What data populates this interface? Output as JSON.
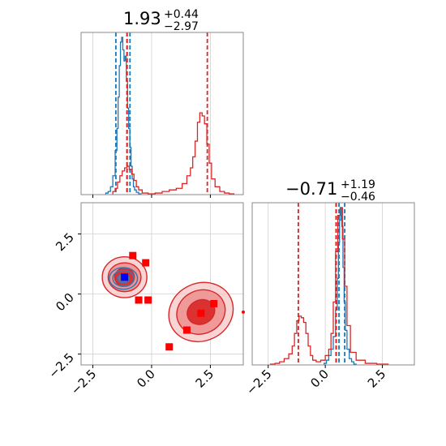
{
  "chart_data": [
    {
      "type": "histogram",
      "panel": "marginal-x",
      "title": {
        "value": "1.93",
        "plus": "+0.44",
        "minus": "−2.97"
      },
      "xlim": [
        -3,
        3.9
      ],
      "grid": true,
      "series": [
        {
          "color": "#1f77b4",
          "bin_centers": [
            -1.9,
            -1.8,
            -1.7,
            -1.6,
            -1.5,
            -1.45,
            -1.4,
            -1.35,
            -1.3,
            -1.25,
            -1.2,
            -1.15,
            -1.1,
            -1.05,
            -1.0,
            -0.95,
            -0.9,
            -0.85,
            -0.8,
            -0.75,
            -0.7,
            -0.6,
            -0.5
          ],
          "heights": [
            0.01,
            0.02,
            0.05,
            0.12,
            0.28,
            0.42,
            0.62,
            0.82,
            0.97,
            1.0,
            0.92,
            0.85,
            0.88,
            0.72,
            0.55,
            0.42,
            0.3,
            0.18,
            0.1,
            0.05,
            0.03,
            0.015,
            0.005
          ],
          "quantile_lines": [
            -1.52,
            -1.05,
            -0.92
          ]
        },
        {
          "color": "#d62728",
          "bin_centers": [
            -1.6,
            -1.5,
            -1.4,
            -1.3,
            -1.2,
            -1.1,
            -1.0,
            -0.9,
            -0.8,
            -0.7,
            -0.6,
            -0.5,
            -0.3,
            0,
            0.3,
            0.6,
            0.9,
            1.2,
            1.4,
            1.6,
            1.7,
            1.8,
            1.9,
            2.0,
            2.1,
            2.2,
            2.3,
            2.4,
            2.5,
            2.6,
            2.8,
            3.0,
            3.2,
            3.4
          ],
          "heights": [
            0.02,
            0.04,
            0.08,
            0.12,
            0.15,
            0.17,
            0.18,
            0.16,
            0.13,
            0.09,
            0.05,
            0.03,
            0.01,
            0.005,
            0.01,
            0.02,
            0.03,
            0.04,
            0.07,
            0.12,
            0.17,
            0.24,
            0.34,
            0.46,
            0.52,
            0.5,
            0.45,
            0.32,
            0.2,
            0.1,
            0.05,
            0.02,
            0.01,
            0.005
          ],
          "quantile_lines": [
            -1.04,
            2.37
          ]
        }
      ]
    },
    {
      "type": "scatter-contour",
      "panel": "joint",
      "xlim": [
        -3,
        3.9
      ],
      "ylim": [
        -2.95,
        3.8
      ],
      "xticks": [
        -2.5,
        0.0,
        2.5
      ],
      "yticks": [
        -2.5,
        0.0,
        2.5
      ],
      "tick_labels": {
        "x": [
          "−2.5",
          "0.0",
          "2.5"
        ],
        "y": [
          "−2.5",
          "0.0",
          "2.5"
        ]
      },
      "grid": true,
      "contours_red": [
        {
          "center": [
            -1.15,
            0.7
          ],
          "levels": [
            [
              0.95,
              0.85
            ],
            [
              0.7,
              0.6
            ],
            [
              0.42,
              0.38
            ]
          ]
        },
        {
          "center": [
            2.1,
            -0.75
          ],
          "levels": [
            [
              1.4,
              1.2
            ],
            [
              1.05,
              0.9
            ],
            [
              0.6,
              0.5
            ]
          ]
        }
      ],
      "contours_blue": [
        {
          "center": [
            -1.2,
            0.65
          ],
          "levels": [
            [
              0.6,
              0.45
            ],
            [
              0.45,
              0.33
            ],
            [
              0.25,
              0.18
            ]
          ]
        }
      ],
      "red_squares": [
        [
          -0.8,
          1.6
        ],
        [
          -0.25,
          1.3
        ],
        [
          -0.55,
          -0.25
        ],
        [
          -0.15,
          -0.25
        ],
        [
          2.65,
          -0.4
        ],
        [
          2.1,
          -0.8
        ],
        [
          1.5,
          -1.5
        ],
        [
          0.75,
          -2.2
        ],
        [
          3.95,
          -0.75
        ]
      ],
      "blue_squares": [
        [
          -1.15,
          0.7
        ]
      ]
    },
    {
      "type": "histogram",
      "panel": "marginal-y",
      "title": {
        "value": "−0.71",
        "plus": "+1.19",
        "minus": "−0.46"
      },
      "xlim": [
        -3.2,
        3.9
      ],
      "xticks": [
        -2.5,
        0.0,
        2.5
      ],
      "tick_labels": {
        "x": [
          "−2.5",
          "0.0",
          "2.5"
        ]
      },
      "grid": true,
      "series": [
        {
          "color": "#1f77b4",
          "bin_centers": [
            0.0,
            0.1,
            0.2,
            0.3,
            0.4,
            0.5,
            0.55,
            0.6,
            0.65,
            0.7,
            0.75,
            0.8,
            0.85,
            0.9,
            1.0,
            1.1,
            1.2,
            1.3
          ],
          "heights": [
            0.01,
            0.03,
            0.06,
            0.1,
            0.18,
            0.35,
            0.55,
            0.78,
            0.92,
            1.0,
            0.88,
            0.62,
            0.4,
            0.22,
            0.1,
            0.04,
            0.02,
            0.005
          ],
          "quantile_lines": [
            0.47,
            0.6,
            0.85
          ]
        },
        {
          "color": "#d62728",
          "bin_centers": [
            -2.3,
            -2.1,
            -1.9,
            -1.7,
            -1.5,
            -1.4,
            -1.3,
            -1.2,
            -1.1,
            -1.0,
            -0.9,
            -0.8,
            -0.7,
            -0.6,
            -0.5,
            -0.3,
            -0.1,
            0.1,
            0.2,
            0.3,
            0.4,
            0.5,
            0.6,
            0.7,
            0.8,
            0.9,
            1.0,
            1.2,
            1.5,
            2.0,
            2.5
          ],
          "heights": [
            0.005,
            0.01,
            0.02,
            0.04,
            0.07,
            0.12,
            0.2,
            0.28,
            0.31,
            0.3,
            0.27,
            0.2,
            0.12,
            0.06,
            0.03,
            0.02,
            0.03,
            0.06,
            0.1,
            0.2,
            0.4,
            0.72,
            0.95,
            1.0,
            0.8,
            0.5,
            0.25,
            0.08,
            0.03,
            0.01,
            0.005
          ],
          "quantile_lines": [
            -1.18,
            0.48
          ]
        }
      ]
    }
  ]
}
